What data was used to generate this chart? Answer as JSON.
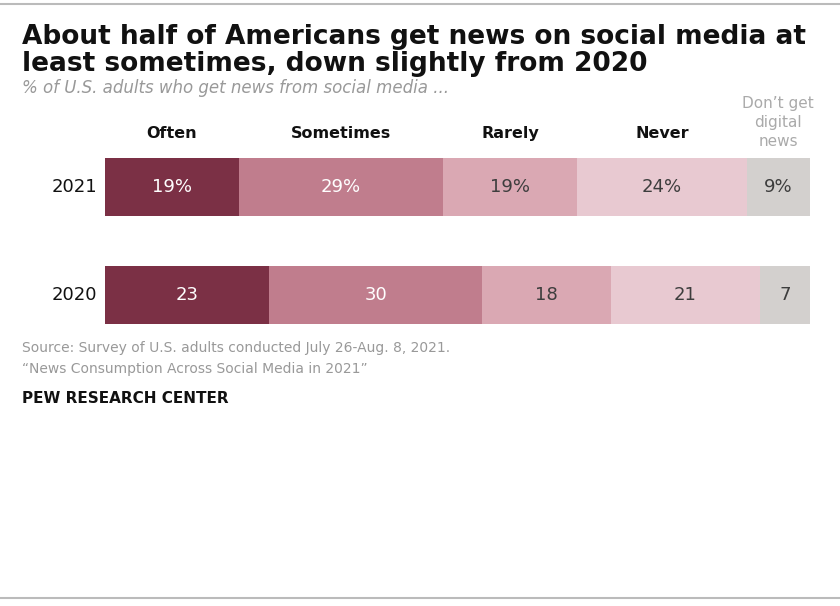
{
  "title_line1": "About half of Americans get news on social media at",
  "title_line2": "least sometimes, down slightly from 2020",
  "subtitle": "% of U.S. adults who get news from social media ...",
  "categories": [
    "Often",
    "Sometimes",
    "Rarely",
    "Never",
    "Don’t get\ndigital\nnews"
  ],
  "values": {
    "2021": [
      19,
      29,
      19,
      24,
      9
    ],
    "2020": [
      23,
      30,
      18,
      21,
      7
    ]
  },
  "labels": {
    "2021": [
      "19%",
      "29%",
      "19%",
      "24%",
      "9%"
    ],
    "2020": [
      "23",
      "30",
      "18",
      "21",
      "7"
    ]
  },
  "colors": [
    "#7b3045",
    "#c07d8d",
    "#daa8b3",
    "#e8c9d1",
    "#d3d0ce"
  ],
  "label_colors": {
    "2021": [
      "#ffffff",
      "#ffffff",
      "#3d3d3d",
      "#3d3d3d",
      "#3d3d3d"
    ],
    "2020": [
      "#ffffff",
      "#ffffff",
      "#3d3d3d",
      "#3d3d3d",
      "#3d3d3d"
    ]
  },
  "source_text": "Source: Survey of U.S. adults conducted July 26-Aug. 8, 2021.\n“News Consumption Across Social Media in 2021”",
  "footer_text": "PEW RESEARCH CENTER",
  "background_color": "#ffffff"
}
